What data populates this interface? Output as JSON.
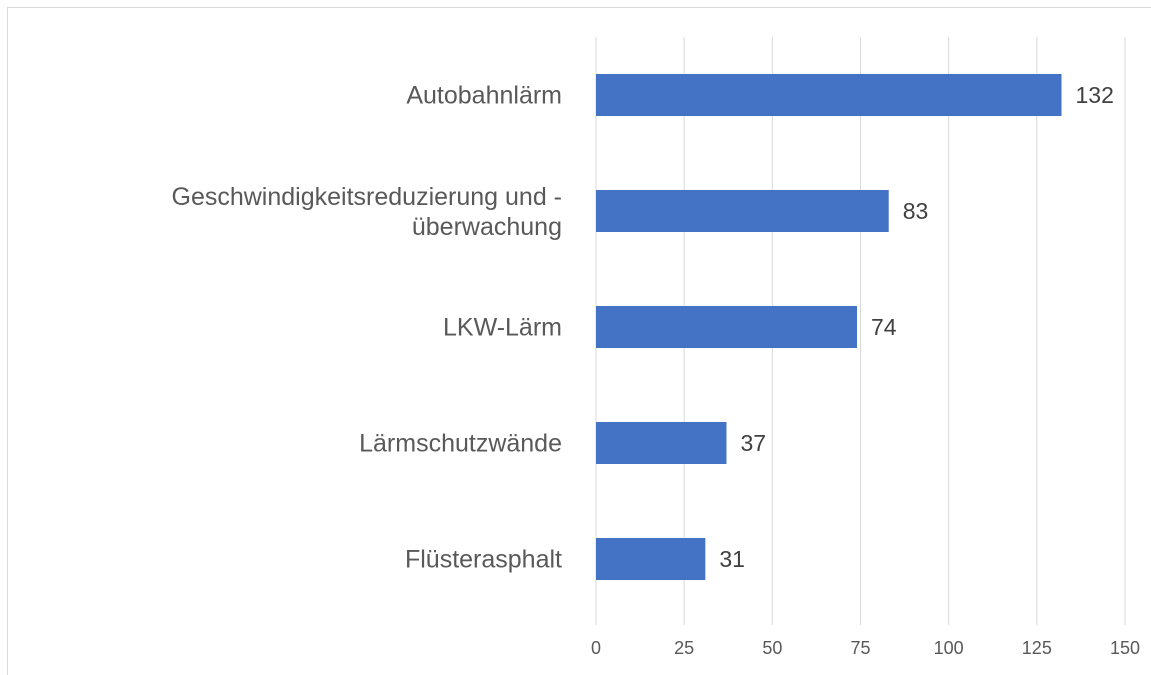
{
  "chart_data": {
    "type": "bar",
    "orientation": "horizontal",
    "categories": [
      "Autobahnlärm",
      "Geschwindigkeitsreduzierung und -\nüberwachung",
      "LKW-Lärm",
      "Lärmschutzwände",
      "Flüsterasphalt"
    ],
    "values": [
      132,
      83,
      74,
      37,
      31
    ],
    "color": "#4472c4",
    "xlim": [
      0,
      150
    ],
    "xticks": [
      0,
      25,
      50,
      75,
      100,
      125,
      150
    ],
    "grid": true
  }
}
